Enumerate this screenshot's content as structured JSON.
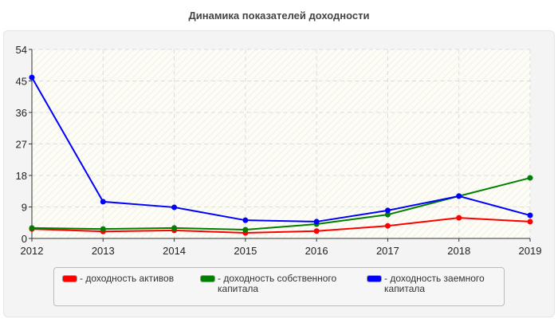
{
  "chart_data": {
    "type": "line",
    "title": "Динамика показателей доходности",
    "categories": [
      "2012",
      "2013",
      "2014",
      "2015",
      "2016",
      "2017",
      "2018",
      "2019"
    ],
    "ylim": [
      0,
      54
    ],
    "yticks": [
      0,
      9,
      18,
      27,
      36,
      45,
      54
    ],
    "grid": true,
    "legend_position": "bottom",
    "series": [
      {
        "name": "- доходность активов",
        "color": "#ff0000",
        "values": [
          2.7,
          2.0,
          2.3,
          1.6,
          2.1,
          3.6,
          5.9,
          4.8
        ]
      },
      {
        "name": "- доходность собственного капитала",
        "color": "#008000",
        "values": [
          3.0,
          2.7,
          3.0,
          2.5,
          4.1,
          6.8,
          12.1,
          17.3
        ]
      },
      {
        "name": "- доходность заемного капитала",
        "color": "#0000ff",
        "values": [
          46.0,
          10.5,
          8.9,
          5.2,
          4.8,
          8.0,
          12.1,
          6.6
        ]
      }
    ]
  }
}
